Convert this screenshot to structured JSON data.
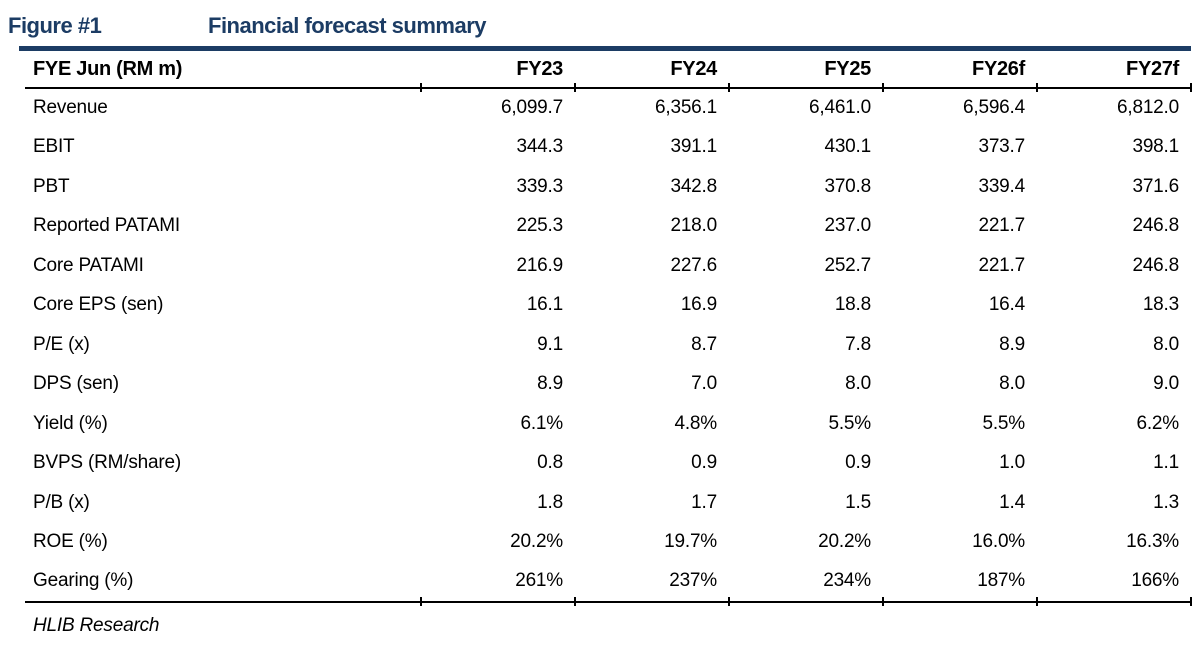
{
  "figure": {
    "label": "Figure #1",
    "title": "Financial forecast summary"
  },
  "table": {
    "header": {
      "label_col": "FYE Jun (RM m)",
      "year_cols": [
        "FY23",
        "FY24",
        "FY25",
        "FY26f",
        "FY27f"
      ]
    },
    "rows": [
      {
        "label": "Revenue",
        "values": [
          "6,099.7",
          "6,356.1",
          "6,461.0",
          "6,596.4",
          "6,812.0"
        ]
      },
      {
        "label": "EBIT",
        "values": [
          "344.3",
          "391.1",
          "430.1",
          "373.7",
          "398.1"
        ]
      },
      {
        "label": "PBT",
        "values": [
          "339.3",
          "342.8",
          "370.8",
          "339.4",
          "371.6"
        ]
      },
      {
        "label": "Reported PATAMI",
        "values": [
          "225.3",
          "218.0",
          "237.0",
          "221.7",
          "246.8"
        ]
      },
      {
        "label": "Core PATAMI",
        "values": [
          "216.9",
          "227.6",
          "252.7",
          "221.7",
          "246.8"
        ]
      },
      {
        "label": "Core EPS (sen)",
        "values": [
          "16.1",
          "16.9",
          "18.8",
          "16.4",
          "18.3"
        ]
      },
      {
        "label": "P/E (x)",
        "values": [
          "9.1",
          "8.7",
          "7.8",
          "8.9",
          "8.0"
        ]
      },
      {
        "label": "DPS (sen)",
        "values": [
          "8.9",
          "7.0",
          "8.0",
          "8.0",
          "9.0"
        ]
      },
      {
        "label": "Yield (%)",
        "values": [
          "6.1%",
          "4.8%",
          "5.5%",
          "5.5%",
          "6.2%"
        ]
      },
      {
        "label": "BVPS (RM/share)",
        "values": [
          "0.8",
          "0.9",
          "0.9",
          "1.0",
          "1.1"
        ]
      },
      {
        "label": "P/B (x)",
        "values": [
          "1.8",
          "1.7",
          "1.5",
          "1.4",
          "1.3"
        ]
      },
      {
        "label": "ROE (%)",
        "values": [
          "20.2%",
          "19.7%",
          "20.2%",
          "16.0%",
          "16.3%"
        ]
      },
      {
        "label": "Gearing (%)",
        "values": [
          "261%",
          "237%",
          "234%",
          "187%",
          "166%"
        ]
      }
    ],
    "source": "HLIB Research"
  },
  "colors": {
    "accent_navy": "#1c3c64",
    "rule_black": "#000000"
  }
}
